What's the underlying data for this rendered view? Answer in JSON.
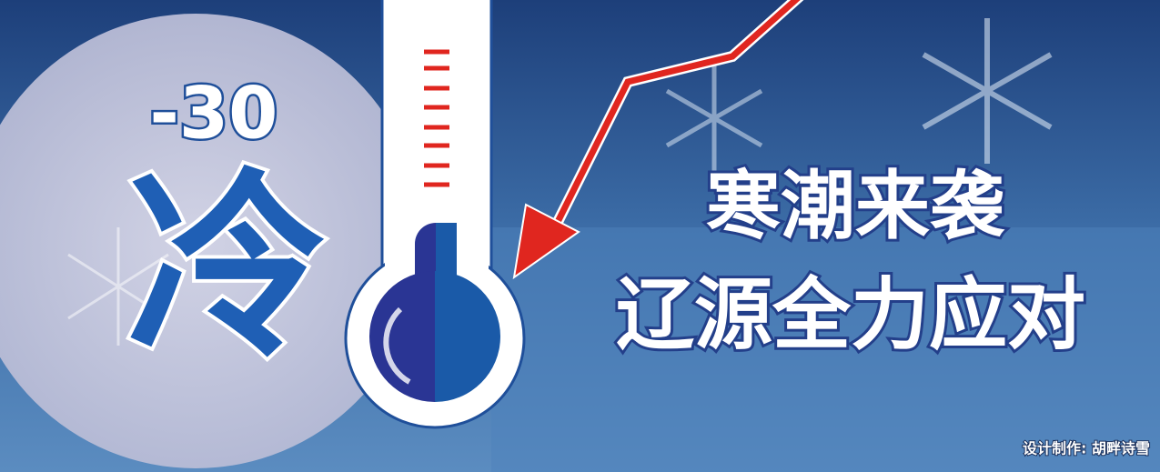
{
  "poster": {
    "temperature": "-30",
    "cold": "冷",
    "headline": "寒潮来袭",
    "subhead": "辽源全力应对",
    "credit": "设计制作: 胡畔诗雪"
  }
}
